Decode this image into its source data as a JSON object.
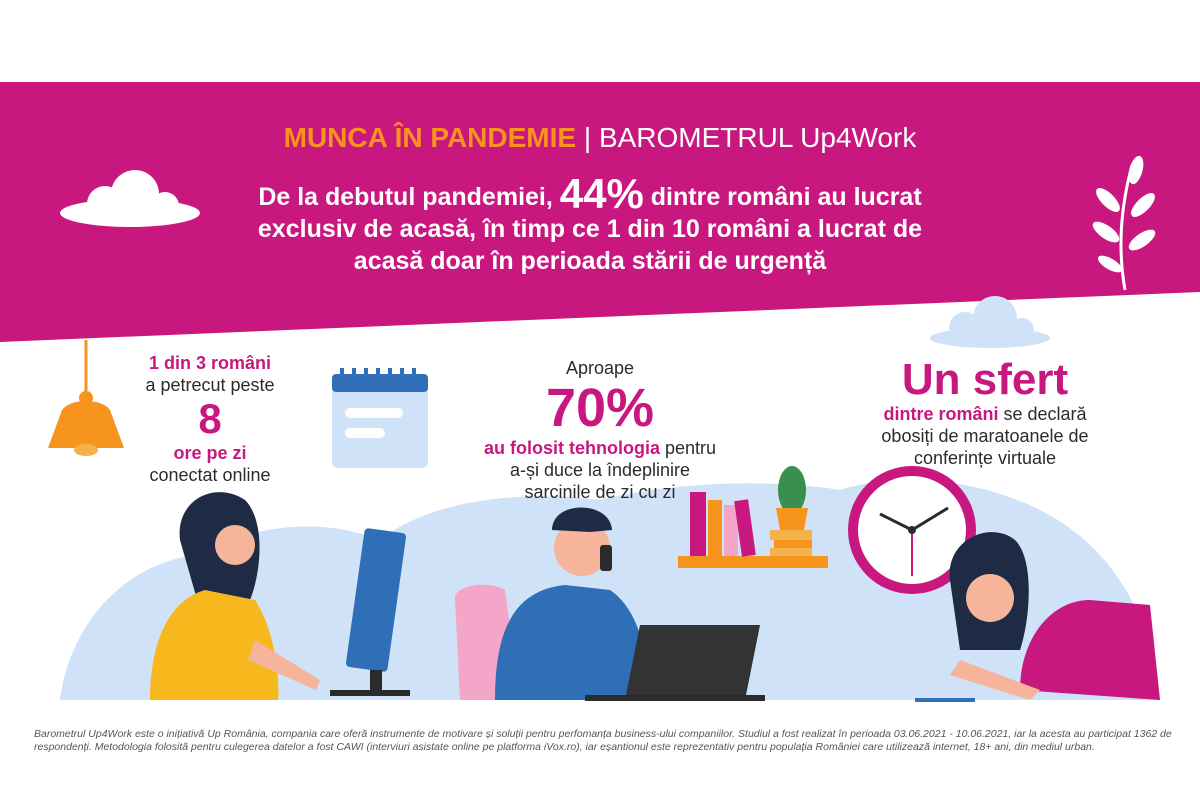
{
  "colors": {
    "magenta": "#c8187f",
    "orange": "#f7941d",
    "light_blue": "#cfe2f7",
    "dark_text": "#2b2b2b"
  },
  "title": {
    "accent": "MUNCA ÎN PANDEMIE",
    "separator": "|",
    "main": "BAROMETRUL Up4Work"
  },
  "headline": {
    "part1": "De la debutul pandemiei, ",
    "highlight": "44%",
    "part2": " dintre români au lucrat exclusiv de acasă, în timp ce 1 din 10 români a lucrat de acasă doar în perioada stării de urgență"
  },
  "stats": [
    {
      "lead": "1 din 3 români",
      "line2": "a petrecut peste",
      "number": "8",
      "unit": "ore pe zi",
      "tail": "conectat online"
    },
    {
      "lead": "Aproape",
      "number": "70%",
      "highlight": "au folosit tehnologia",
      "tail1": " pentru",
      "tail2": "a-și duce la îndeplinire",
      "tail3": "sarcinile de zi cu zi"
    },
    {
      "number": "Un sfert",
      "highlight": "dintre români",
      "tail1": " se declară",
      "tail2": "obosiți de maratoanele de",
      "tail3": "conferințe virtuale"
    }
  ],
  "icons": [
    "cloud-icon",
    "leaf-branch-icon",
    "lamp-icon",
    "calendar-icon",
    "books-icon",
    "cactus-icon",
    "clock-icon"
  ],
  "footnote": "Barometrul Up4Work este o inițiativă Up România, compania care oferă instrumente de motivare și soluții pentru perfomanța business-ului companiilor. Studiul a fost realizat în perioada 03.06.2021 - 10.06.2021, iar la acesta au participat 1362 de respondenți. Metodologia folosită pentru culegerea datelor a fost CAWI (interviuri asistate online pe platforma iVox.ro), iar eșantionul este reprezentativ pentru populația României care utilizează internet, 18+ ani, din mediul urban."
}
